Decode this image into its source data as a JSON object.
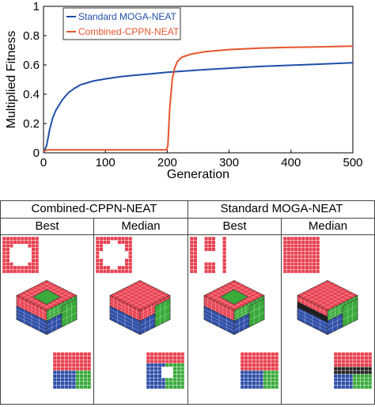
{
  "chart_data": {
    "type": "line",
    "title": "",
    "xlabel": "Generation",
    "ylabel": "Multiplied Fitness",
    "xlim": [
      0,
      500
    ],
    "ylim": [
      0,
      1
    ],
    "xticks": [
      0,
      100,
      200,
      300,
      400,
      500
    ],
    "yticks": [
      0,
      0.2,
      0.4,
      0.6,
      0.8,
      1
    ],
    "legend_position": "top-left",
    "grid": false,
    "series": [
      {
        "name": "Standard MOGA-NEAT",
        "color": "#1f4fa8",
        "x": [
          0,
          5,
          10,
          15,
          20,
          30,
          40,
          50,
          60,
          80,
          100,
          125,
          150,
          175,
          200,
          250,
          300,
          350,
          400,
          450,
          500
        ],
        "y": [
          0,
          0.05,
          0.16,
          0.24,
          0.29,
          0.36,
          0.41,
          0.44,
          0.465,
          0.49,
          0.505,
          0.52,
          0.53,
          0.54,
          0.55,
          0.565,
          0.578,
          0.59,
          0.598,
          0.606,
          0.615
        ]
      },
      {
        "name": "Combined-CPPN-NEAT",
        "color": "#e8542c",
        "x": [
          0,
          5,
          10,
          50,
          100,
          150,
          199,
          201,
          204,
          208,
          212,
          216,
          220,
          225,
          232,
          240,
          260,
          300,
          350,
          400,
          450,
          500
        ],
        "y": [
          0.01,
          0.02,
          0.02,
          0.02,
          0.02,
          0.02,
          0.02,
          0.05,
          0.3,
          0.5,
          0.58,
          0.62,
          0.64,
          0.655,
          0.665,
          0.675,
          0.69,
          0.705,
          0.715,
          0.72,
          0.724,
          0.728
        ]
      }
    ]
  },
  "panel": {
    "groups": [
      "Combined-CPPN-NEAT",
      "Standard MOGA-NEAT"
    ],
    "columns": [
      "Best",
      "Median",
      "Best",
      "Median"
    ],
    "colors": {
      "red": "#e8404f",
      "blue": "#2f4fa8",
      "green": "#3aaa3a",
      "black": "#202020",
      "white": "#ffffff"
    }
  }
}
